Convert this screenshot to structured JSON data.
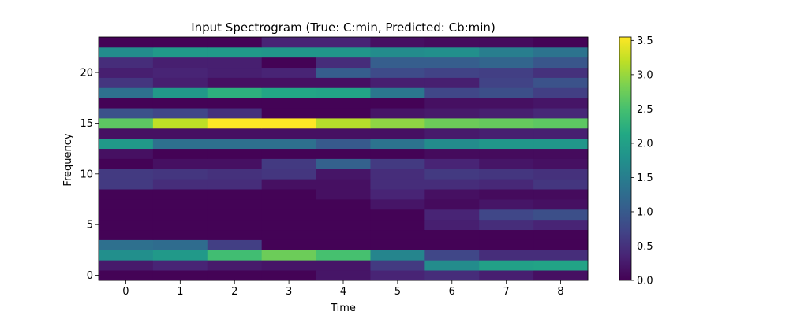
{
  "chart_data": {
    "type": "heatmap",
    "title": "Input Spectrogram (True: C:min, Predicted: Cb:min)",
    "xlabel": "Time",
    "ylabel": "Frequency",
    "x": [
      0,
      1,
      2,
      3,
      4,
      5,
      6,
      7,
      8
    ],
    "y": [
      0,
      1,
      2,
      3,
      4,
      5,
      6,
      7,
      8,
      9,
      10,
      11,
      12,
      13,
      14,
      15,
      16,
      17,
      18,
      19,
      20,
      21,
      22,
      23
    ],
    "xticks": [
      0,
      1,
      2,
      3,
      4,
      5,
      6,
      7,
      8
    ],
    "yticks": [
      0,
      5,
      10,
      15,
      20
    ],
    "xlim": [
      -0.5,
      8.5
    ],
    "ylim": [
      -0.5,
      23.5
    ],
    "colormap": "viridis",
    "colorbar": {
      "min": 0.0,
      "max": 3.55,
      "ticks": [
        "0.0",
        "0.5",
        "1.0",
        "1.5",
        "2.0",
        "2.5",
        "3.0",
        "3.5"
      ]
    },
    "values": [
      [
        0.02,
        0.02,
        0.02,
        0.02,
        0.2,
        0.35,
        0.45,
        0.3,
        0.15
      ],
      [
        0.25,
        0.35,
        0.25,
        0.2,
        0.2,
        0.6,
        1.7,
        2.0,
        2.05
      ],
      [
        1.75,
        1.9,
        2.45,
        2.75,
        2.5,
        1.6,
        0.75,
        0.45,
        0.45
      ],
      [
        1.3,
        1.25,
        0.65,
        0.02,
        0.02,
        0.02,
        0.02,
        0.02,
        0.02
      ],
      [
        0.02,
        0.02,
        0.02,
        0.02,
        0.02,
        0.02,
        0.02,
        0.02,
        0.02
      ],
      [
        0.02,
        0.02,
        0.02,
        0.02,
        0.02,
        0.02,
        0.3,
        0.45,
        0.35
      ],
      [
        0.02,
        0.02,
        0.02,
        0.02,
        0.02,
        0.02,
        0.35,
        0.75,
        0.85
      ],
      [
        0.02,
        0.02,
        0.02,
        0.02,
        0.02,
        0.2,
        0.1,
        0.2,
        0.15
      ],
      [
        0.02,
        0.02,
        0.02,
        0.02,
        0.15,
        0.35,
        0.15,
        0.1,
        0.1
      ],
      [
        0.6,
        0.45,
        0.45,
        0.15,
        0.15,
        0.45,
        0.45,
        0.4,
        0.55
      ],
      [
        0.6,
        0.55,
        0.5,
        0.55,
        0.2,
        0.45,
        0.6,
        0.55,
        0.5
      ],
      [
        0.02,
        0.15,
        0.15,
        0.6,
        1.1,
        0.6,
        0.35,
        0.2,
        0.15
      ],
      [
        0.15,
        0.02,
        0.02,
        0.02,
        0.02,
        0.02,
        0.1,
        0.1,
        0.1
      ],
      [
        1.9,
        1.3,
        1.3,
        1.3,
        1.0,
        1.35,
        1.7,
        1.85,
        1.85
      ],
      [
        0.15,
        0.15,
        0.15,
        0.15,
        0.15,
        0.15,
        0.25,
        0.3,
        0.3
      ],
      [
        2.65,
        3.2,
        3.55,
        3.55,
        3.15,
        2.95,
        2.75,
        2.7,
        2.65
      ],
      [
        0.9,
        0.75,
        0.5,
        0.02,
        0.02,
        0.2,
        0.25,
        0.3,
        0.4
      ],
      [
        0.02,
        0.02,
        0.02,
        0.02,
        0.02,
        0.02,
        0.15,
        0.15,
        0.2
      ],
      [
        1.3,
        1.9,
        2.25,
        2.1,
        2.05,
        1.4,
        0.75,
        0.85,
        0.65
      ],
      [
        0.55,
        0.3,
        0.15,
        0.15,
        0.15,
        0.3,
        0.3,
        0.7,
        0.9
      ],
      [
        0.3,
        0.35,
        0.3,
        0.35,
        1.05,
        0.8,
        0.7,
        0.65,
        0.5
      ],
      [
        0.45,
        0.3,
        0.3,
        0.02,
        0.45,
        1.05,
        1.05,
        1.15,
        0.95
      ],
      [
        1.7,
        1.9,
        1.9,
        1.85,
        1.85,
        1.7,
        1.75,
        1.5,
        1.35
      ],
      [
        0.02,
        0.02,
        0.02,
        0.35,
        0.35,
        0.15,
        0.1,
        0.1,
        0.02
      ]
    ]
  }
}
